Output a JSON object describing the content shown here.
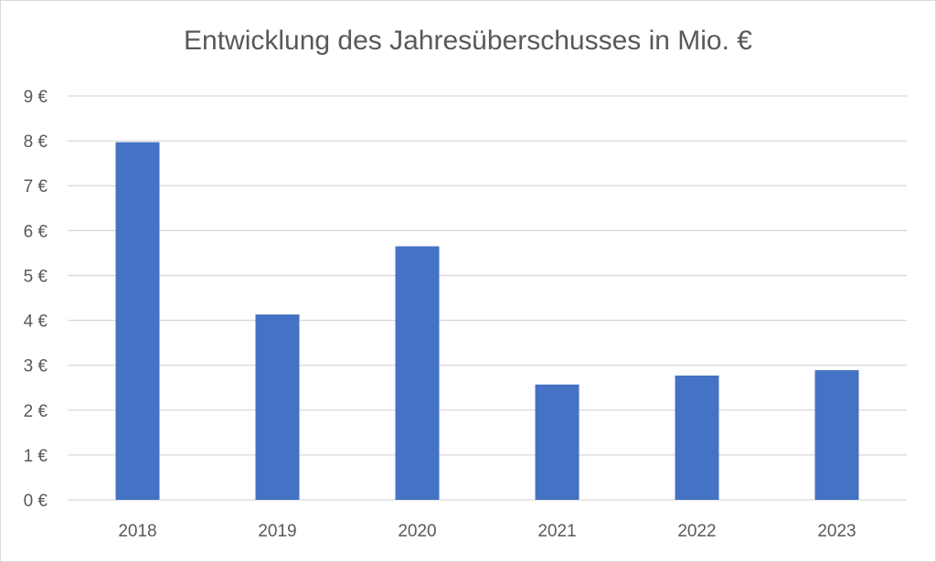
{
  "chart_data": {
    "type": "bar",
    "title": "Entwicklung des Jahresüberschusses in Mio. €",
    "categories": [
      "2018",
      "2019",
      "2020",
      "2021",
      "2022",
      "2023"
    ],
    "values": [
      7.97,
      4.13,
      5.65,
      2.57,
      2.77,
      2.89
    ],
    "xlabel": "",
    "ylabel": "",
    "ylim": [
      0,
      9
    ],
    "y_tick_labels": [
      "0 €",
      "1 €",
      "2 €",
      "3 €",
      "4 €",
      "5 €",
      "6 €",
      "7 €",
      "8 €",
      "9 €"
    ],
    "grid": true,
    "legend": "none",
    "colors": {
      "bar": "#4472c4",
      "grid": "#d9d9d9",
      "text": "#595959"
    }
  }
}
